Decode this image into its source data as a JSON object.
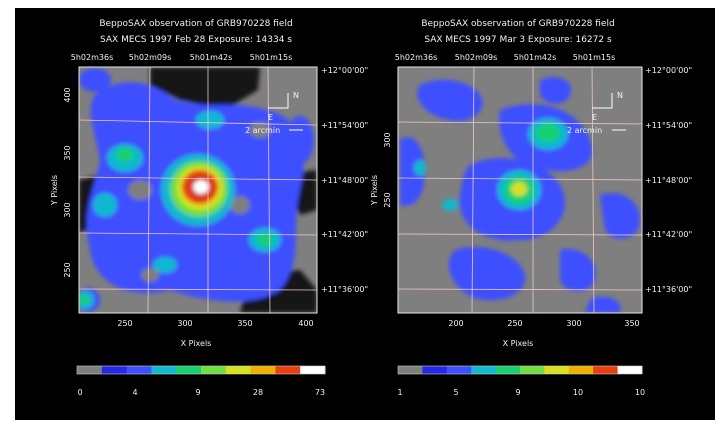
{
  "panels": [
    {
      "title_line1": "BeppoSAX observation of GRB970228 field",
      "title_line2": "SAX MECS   1997 Feb 28    Exposure: 14334 s",
      "ra_ticks": [
        "5h02m36s",
        "5h02m09s",
        "5h01m42s",
        "5h01m15s"
      ],
      "dec_ticks": [
        "+12°00'00\"",
        "+11°54'00\"",
        "+11°48'00\"",
        "+11°42'00\"",
        "+11°36'00\""
      ],
      "x_ticks": [
        "250",
        "300",
        "350",
        "400"
      ],
      "y_ticks": [
        "400",
        "350",
        "300",
        "250"
      ],
      "x_label": "X Pixels",
      "y_label": "Y Pixels",
      "compass_n": "N",
      "compass_e": "E",
      "scale_label": "2 arcmin",
      "colorbar_labels": [
        "0",
        "4",
        "9",
        "28",
        "73"
      ]
    },
    {
      "title_line1": "BeppoSAX observation of GRB970228 field",
      "title_line2": "SAX MECS   1997 Mar  3    Exposure: 16272 s",
      "ra_ticks": [
        "5h02m36s",
        "5h02m09s",
        "5h01m42s",
        "5h01m15s"
      ],
      "dec_ticks": [
        "+12°00'00\"",
        "+11°54'00\"",
        "+11°48'00\"",
        "+11°42'00\"",
        "+11°36'00\""
      ],
      "x_ticks": [
        "200",
        "250",
        "300",
        "350"
      ],
      "y_ticks": [
        "300",
        "250"
      ],
      "x_label": "X Pixels",
      "y_label": "Y Pixels",
      "compass_n": "N",
      "compass_e": "E",
      "scale_label": "2 arcmin",
      "colorbar_labels": [
        "1",
        "5",
        "9",
        "10",
        "10"
      ]
    }
  ],
  "colormap": [
    "#7f7f7f",
    "#2828e6",
    "#3c50ff",
    "#10b8d0",
    "#18d070",
    "#70e040",
    "#d8e020",
    "#f0b000",
    "#e84010",
    "#ffffff"
  ],
  "background": "#000000",
  "grid_color": "#f0c8c8"
}
